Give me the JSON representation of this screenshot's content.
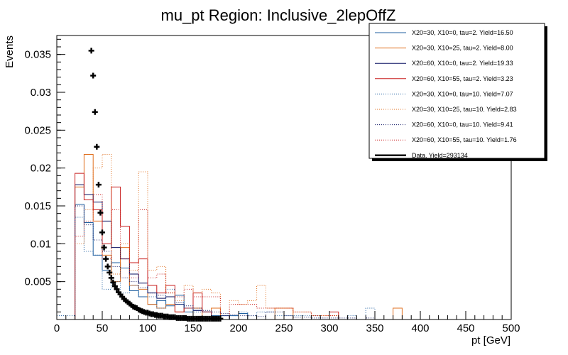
{
  "chart_data": {
    "type": "histogram",
    "title": "mu_pt Region: Inclusive_2lepOffZ",
    "xlabel": "pt [GeV]",
    "ylabel": "Events",
    "xlim": [
      0,
      500
    ],
    "ylim": [
      0,
      0.0375
    ],
    "xticks": [
      0,
      50,
      100,
      150,
      200,
      250,
      300,
      350,
      400,
      450,
      500
    ],
    "xtick_labels": [
      "0",
      "50",
      "100",
      "150",
      "200",
      "250",
      "300",
      "350",
      "400",
      "450",
      "500"
    ],
    "yticks": [
      0.005,
      0.01,
      0.015,
      0.02,
      0.025,
      0.03,
      0.035
    ],
    "ytick_labels": [
      "0.005",
      "0.01",
      "0.015",
      "0.02",
      "0.025",
      "0.03",
      "0.035"
    ],
    "bin_width": 10,
    "bin_edges_start": 0,
    "legend_position": "top-right",
    "series": [
      {
        "name": "X20=30, X10=0, tau=2. Yield=16.50",
        "color": "#1f5fa0",
        "style": "solid",
        "values": [
          0,
          0,
          0.0152,
          0.0128,
          0.0085,
          0.0065,
          0.0075,
          0.0068,
          0.0038,
          0.003,
          0.002,
          0.0025,
          0.0018,
          0.0032,
          0.001,
          0.0012,
          0.001,
          0.0005,
          0,
          0.0005,
          0.0008,
          0,
          0,
          0,
          0,
          0,
          0,
          0,
          0,
          0,
          0,
          0,
          0,
          0,
          0,
          0,
          0,
          0,
          0,
          0,
          0,
          0,
          0,
          0,
          0,
          0,
          0,
          0,
          0,
          0
        ]
      },
      {
        "name": "X20=30, X10=25, tau=2. Yield=8.00",
        "color": "#e07020",
        "style": "solid",
        "values": [
          0,
          0,
          0.0175,
          0.0218,
          0.013,
          0.0085,
          0.005,
          0.0095,
          0.0045,
          0.004,
          0.002,
          0.0015,
          0.002,
          0.001,
          0.0015,
          0.0015,
          0,
          0.0015,
          0,
          0,
          0,
          0,
          0,
          0,
          0.0015,
          0.0015,
          0,
          0,
          0,
          0,
          0,
          0,
          0,
          0,
          0,
          0,
          0,
          0.0015,
          0,
          0,
          0,
          0,
          0,
          0,
          0,
          0,
          0,
          0,
          0,
          0
        ]
      },
      {
        "name": "X20=60, X10=0, tau=2. Yield=19.33",
        "color": "#0a1060",
        "style": "solid",
        "values": [
          0,
          0,
          0.0178,
          0.0165,
          0.0155,
          0.013,
          0.0095,
          0.008,
          0.006,
          0.0048,
          0.0035,
          0.0028,
          0.003,
          0.002,
          0.0015,
          0.0012,
          0.001,
          0,
          0.0005,
          0,
          0,
          0,
          0,
          0,
          0,
          0,
          0,
          0,
          0,
          0,
          0,
          0,
          0,
          0,
          0,
          0,
          0,
          0,
          0,
          0,
          0,
          0,
          0,
          0,
          0,
          0,
          0,
          0,
          0,
          0
        ]
      },
      {
        "name": "X20=60, X10=55, tau=2. Yield=3.23",
        "color": "#c81e1e",
        "style": "solid",
        "values": [
          0,
          0,
          0.0193,
          0.0158,
          0.0145,
          0.01,
          0.0175,
          0.0123,
          0.0075,
          0.008,
          0.0045,
          0.0035,
          0.0045,
          0.001,
          0.0015,
          0.0035,
          0.001,
          0,
          0,
          0,
          0,
          0,
          0,
          0,
          0,
          0,
          0,
          0,
          0,
          0,
          0.001,
          0,
          0,
          0,
          0,
          0,
          0,
          0,
          0,
          0,
          0,
          0,
          0,
          0,
          0,
          0,
          0,
          0,
          0,
          0
        ]
      },
      {
        "name": "X20=30, X10=0, tau=10. Yield=7.07",
        "color": "#1f5fa0",
        "style": "dotted",
        "values": [
          0.0005,
          0.0005,
          0.0135,
          0.009,
          0.0085,
          0.004,
          0.005,
          0.0035,
          0.0045,
          0.003,
          0.003,
          0.0015,
          0.004,
          0.002,
          0.0015,
          0.001,
          0.001,
          0.0005,
          0.0005,
          0.0005,
          0.001,
          0.0005,
          0.001,
          0.001,
          0.0005,
          0.0005,
          0.0005,
          0.0005,
          0.0005,
          0,
          0,
          0,
          0.0005,
          0,
          0.0015,
          0,
          0,
          0,
          0,
          0,
          0,
          0,
          0,
          0,
          0,
          0,
          0,
          0,
          0,
          0
        ]
      },
      {
        "name": "X20=30, X10=25, tau=10. Yield=2.83",
        "color": "#e07020",
        "style": "dotted",
        "values": [
          0,
          0,
          0.01,
          0.0145,
          0.02,
          0.0218,
          0.006,
          0.01,
          0.0065,
          0.0195,
          0.0065,
          0.007,
          0.0035,
          0.0025,
          0.0045,
          0.0035,
          0.004,
          0.0035,
          0,
          0.0025,
          0.002,
          0.0025,
          0.0045,
          0.0015,
          0.0015,
          0.0015,
          0.001,
          0.001,
          0.0005,
          0.0005,
          0.0005,
          0,
          0,
          0,
          0,
          0,
          0,
          0,
          0,
          0,
          0,
          0,
          0,
          0,
          0,
          0,
          0,
          0,
          0,
          0
        ]
      },
      {
        "name": "X20=60, X10=0, tau=10. Yield=9.41",
        "color": "#0a1060",
        "style": "dotted",
        "values": [
          0,
          0,
          0.015,
          0.0125,
          0.0105,
          0.009,
          0.007,
          0.0055,
          0.005,
          0.0042,
          0.0035,
          0.0032,
          0.003,
          0.0022,
          0.0018,
          0.0015,
          0.0012,
          0.001,
          0.0008,
          0.0006,
          0.0005,
          0.0005,
          0.0004,
          0.001,
          0.001,
          0.0005,
          0.0003,
          0.0003,
          0.0002,
          0.0002,
          0.0002,
          0.0002,
          0.0002,
          0,
          0.0002,
          0,
          0,
          0,
          0,
          0,
          0,
          0,
          0,
          0,
          0,
          0,
          0,
          0,
          0,
          0
        ]
      },
      {
        "name": "X20=60, X10=55, tau=10. Yield=1.76",
        "color": "#c81e1e",
        "style": "dotted",
        "values": [
          0,
          0,
          0.011,
          0.013,
          0.0165,
          0.008,
          0.0145,
          0.008,
          0.0055,
          0.0145,
          0.0055,
          0.006,
          0.0035,
          0.003,
          0.004,
          0.003,
          0.003,
          0.003,
          0,
          0.002,
          0.002,
          0.002,
          0.0015,
          0.0015,
          0.0015,
          0.0015,
          0.001,
          0.001,
          0.0005,
          0.0005,
          0.0005,
          0,
          0,
          0,
          0,
          0,
          0,
          0,
          0,
          0,
          0,
          0,
          0,
          0,
          0,
          0,
          0,
          0,
          0,
          0
        ]
      },
      {
        "name": "Data. Yield=293134",
        "color": "#000000",
        "style": "markers",
        "x": [
          38,
          40,
          42,
          44,
          46,
          48,
          50,
          52,
          54,
          56,
          58,
          60,
          62,
          64,
          66,
          68,
          70,
          72,
          74,
          76,
          78,
          80,
          82,
          84,
          86,
          88,
          90,
          92,
          94,
          96,
          98,
          100,
          102,
          104,
          106,
          108,
          110,
          112,
          114,
          116,
          118,
          120,
          122,
          124,
          126,
          128,
          130,
          132,
          134,
          136,
          138,
          140,
          142,
          144,
          146,
          148,
          150,
          152,
          154,
          156,
          158,
          160,
          162,
          164,
          166,
          168,
          170,
          172,
          174,
          176,
          178,
          180
        ],
        "y": [
          0.0355,
          0.0322,
          0.0274,
          0.0228,
          0.0178,
          0.0141,
          0.0115,
          0.0095,
          0.008,
          0.007,
          0.0062,
          0.0055,
          0.0049,
          0.0044,
          0.004,
          0.0036,
          0.0033,
          0.003,
          0.0027,
          0.0025,
          0.0023,
          0.0021,
          0.0019,
          0.0017,
          0.0016,
          0.0015,
          0.0013,
          0.0012,
          0.0011,
          0.001,
          0.0009,
          0.0009,
          0.0008,
          0.0007,
          0.0007,
          0.0006,
          0.0006,
          0.0005,
          0.0005,
          0.0005,
          0.0004,
          0.0004,
          0.0004,
          0.0003,
          0.0003,
          0.0003,
          0.0003,
          0.0002,
          0.0002,
          0.0002,
          0.0002,
          0.0002,
          0.0002,
          0.0001,
          0.0001,
          0.0001,
          0.0001,
          0.0001,
          0.0001,
          0.0001,
          0.0001,
          0.0001,
          0.0001,
          0.0001,
          0.0001,
          0.0001,
          0.0001,
          0.0001,
          0.0001,
          0.0001,
          0.0001,
          0.0001
        ]
      }
    ]
  }
}
